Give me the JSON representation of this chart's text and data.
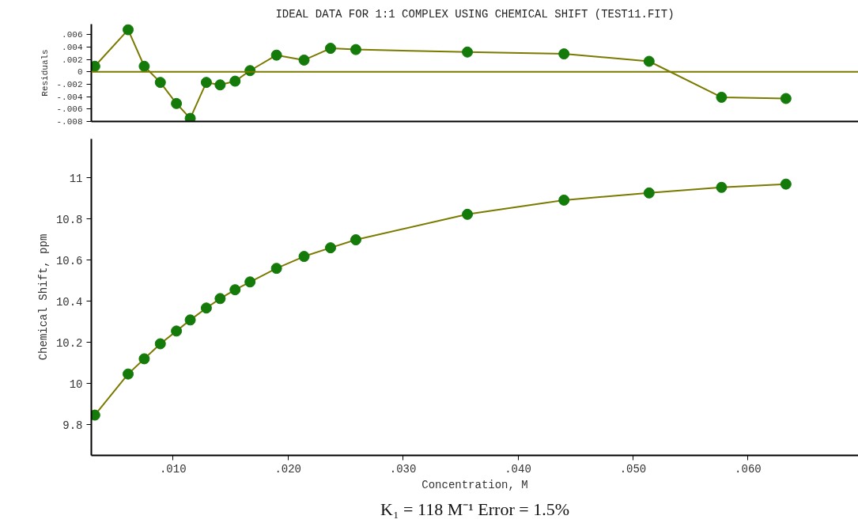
{
  "chart_data": [
    {
      "type": "scatter",
      "title": "IDEAL DATA FOR 1:1 COMPLEX USING CHEMICAL SHIFT (TEST11.FIT)",
      "ylabel": "Residuals",
      "x": [
        0.0032,
        0.0061,
        0.0075,
        0.0089,
        0.0103,
        0.0115,
        0.0129,
        0.0141,
        0.0154,
        0.0167,
        0.019,
        0.0214,
        0.0237,
        0.0259,
        0.0356,
        0.044,
        0.0514,
        0.0577,
        0.0633
      ],
      "series": [
        {
          "type": "line",
          "color": "#7a7a00",
          "marker": "none",
          "values": [
            0.0009,
            0.0068,
            0.0009,
            -0.0017,
            -0.0051,
            -0.0075,
            -0.0017,
            -0.0021,
            -0.0015,
            0.0002,
            0.0027,
            0.0019,
            0.0038,
            0.0036,
            0.0032,
            0.0029,
            0.0017,
            -0.0041,
            -0.0043
          ]
        },
        {
          "color": "#147a0a",
          "marker": "circle",
          "values": [
            0.0009,
            0.0068,
            0.0009,
            -0.0017,
            -0.0051,
            -0.0075,
            -0.0017,
            -0.0021,
            -0.0015,
            0.0002,
            0.0027,
            0.0019,
            0.0038,
            0.0036,
            0.0032,
            0.0029,
            0.0017,
            -0.0041,
            -0.0043
          ]
        }
      ],
      "xlim": [
        0.0029,
        0.0696
      ],
      "ylim": [
        -0.008,
        0.0077
      ],
      "yticks": [
        {
          "value": 0.006,
          "label": ".006"
        },
        {
          "value": 0.004,
          "label": ".004"
        },
        {
          "value": 0.002,
          "label": ".002"
        },
        0,
        {
          "value": -0.002,
          "label": "-.002"
        },
        {
          "value": -0.004,
          "label": "-.004"
        },
        {
          "value": -0.006,
          "label": "-.006"
        },
        {
          "value": -0.008,
          "label": "-.008"
        }
      ],
      "ref_lines": [
        {
          "axis": "y",
          "value": 0,
          "color": "#7a7a00"
        }
      ],
      "tick_labels": "y",
      "grid": false
    },
    {
      "type": "scatter",
      "xlabel": "Concentration, M",
      "ylabel": "Chemical Shift, ppm",
      "x": [
        0.0032,
        0.0061,
        0.0075,
        0.0089,
        0.0103,
        0.0115,
        0.0129,
        0.0141,
        0.0154,
        0.0167,
        0.019,
        0.0214,
        0.0237,
        0.0259,
        0.0356,
        0.044,
        0.0514,
        0.0577,
        0.0633
      ],
      "series": [
        {
          "type": "line",
          "color": "#7a7a00",
          "marker": "none",
          "values": [
            9.846,
            10.046,
            10.12,
            10.193,
            10.255,
            10.309,
            10.367,
            10.413,
            10.456,
            10.494,
            10.56,
            10.618,
            10.66,
            10.699,
            10.823,
            10.892,
            10.927,
            10.954,
            10.97
          ]
        },
        {
          "color": "#147a0a",
          "marker": "circle",
          "values": [
            9.846,
            10.046,
            10.12,
            10.193,
            10.255,
            10.309,
            10.367,
            10.413,
            10.456,
            10.494,
            10.56,
            10.618,
            10.66,
            10.699,
            10.823,
            10.892,
            10.927,
            10.954,
            10.97
          ]
        }
      ],
      "xlim": [
        0.0029,
        0.0696
      ],
      "ylim": [
        9.65,
        11.19
      ],
      "xticks": [
        {
          "value": 0.01,
          "label": ".010"
        },
        {
          "value": 0.02,
          "label": ".020"
        },
        {
          "value": 0.03,
          "label": ".030"
        },
        {
          "value": 0.04,
          "label": ".040"
        },
        {
          "value": 0.05,
          "label": ".050"
        },
        {
          "value": 0.06,
          "label": ".060"
        }
      ],
      "yticks": [
        9.8,
        10,
        10.2,
        10.4,
        10.6,
        10.8,
        11
      ],
      "annotations": [
        "K₁ = 118 M⁻¹ Error = 1.5%"
      ],
      "grid": false
    }
  ]
}
